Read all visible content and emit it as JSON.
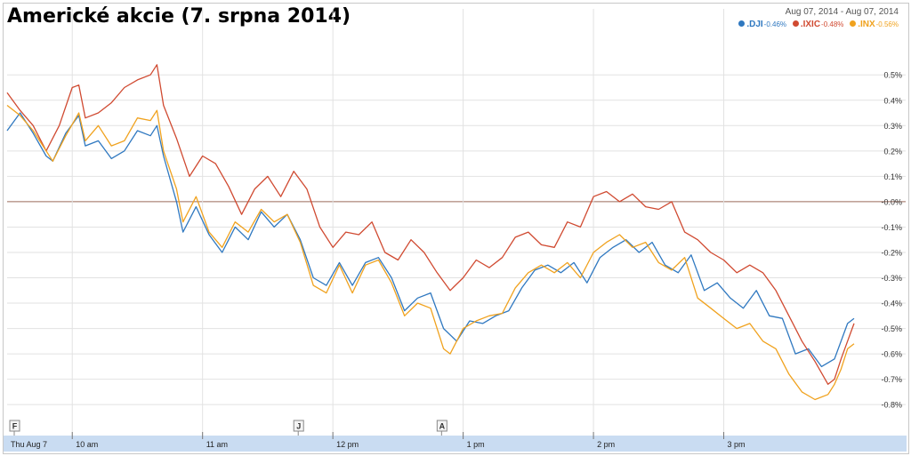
{
  "title": "Americké akcie (7. srpna 2014)",
  "date_range": "Aug 07, 2014  -  Aug 07, 2014",
  "colors": {
    "dji": "#2f78c0",
    "ixic": "#d04a31",
    "inx": "#f0a21e",
    "grid": "#e2e2e2",
    "zero": "#9a6a5a",
    "axis_band": "#c9dcf2"
  },
  "legend": [
    {
      "symbol": ".DJI",
      "change": "-0.46%",
      "color": "#2f78c0"
    },
    {
      "symbol": ".IXIC",
      "change": "-0.48%",
      "color": "#d04a31"
    },
    {
      "symbol": ".INX",
      "change": "-0.56%",
      "color": "#f0a21e"
    }
  ],
  "flags": [
    "F",
    "J",
    "A"
  ],
  "chart_data": {
    "type": "line",
    "title": "Americké akcie (7. srpna 2014)",
    "xlabel": "",
    "ylabel": "",
    "x_unit": "hours since 9:30 am (market open)",
    "x_ticks": [
      {
        "x": 0,
        "label": "Thu Aug 7"
      },
      {
        "x": 0.5,
        "label": "10 am"
      },
      {
        "x": 1.5,
        "label": "11 am"
      },
      {
        "x": 2.5,
        "label": "12 pm"
      },
      {
        "x": 3.5,
        "label": "1 pm"
      },
      {
        "x": 4.5,
        "label": "2 pm"
      },
      {
        "x": 5.5,
        "label": "3 pm"
      }
    ],
    "y_ticks": [
      "0.5%",
      "0.4%",
      "0.3%",
      "0.2%",
      "0.1%",
      "-0.0%",
      "-0.1%",
      "-0.2%",
      "-0.3%",
      "-0.4%",
      "-0.5%",
      "-0.6%",
      "-0.7%",
      "-0.8%"
    ],
    "y_tick_values": [
      0.5,
      0.4,
      0.3,
      0.2,
      0.1,
      0.0,
      -0.1,
      -0.2,
      -0.3,
      -0.4,
      -0.5,
      -0.6,
      -0.7,
      -0.8
    ],
    "ylim": [
      -0.88,
      0.62
    ],
    "xlim": [
      0,
      6.5
    ],
    "grid": true,
    "legend_position": "top-right",
    "series": [
      {
        "name": ".DJI",
        "change": "-0.46%",
        "values": [
          [
            0,
            0.28
          ],
          [
            0.1,
            0.35
          ],
          [
            0.2,
            0.27
          ],
          [
            0.3,
            0.18
          ],
          [
            0.35,
            0.16
          ],
          [
            0.45,
            0.27
          ],
          [
            0.55,
            0.34
          ],
          [
            0.6,
            0.22
          ],
          [
            0.7,
            0.24
          ],
          [
            0.8,
            0.17
          ],
          [
            0.9,
            0.2
          ],
          [
            1.0,
            0.28
          ],
          [
            1.1,
            0.26
          ],
          [
            1.15,
            0.3
          ],
          [
            1.2,
            0.18
          ],
          [
            1.3,
            0.0
          ],
          [
            1.35,
            -0.12
          ],
          [
            1.45,
            -0.02
          ],
          [
            1.55,
            -0.13
          ],
          [
            1.65,
            -0.2
          ],
          [
            1.75,
            -0.1
          ],
          [
            1.85,
            -0.15
          ],
          [
            1.95,
            -0.04
          ],
          [
            2.05,
            -0.1
          ],
          [
            2.15,
            -0.05
          ],
          [
            2.25,
            -0.15
          ],
          [
            2.35,
            -0.3
          ],
          [
            2.45,
            -0.33
          ],
          [
            2.55,
            -0.24
          ],
          [
            2.65,
            -0.33
          ],
          [
            2.75,
            -0.24
          ],
          [
            2.85,
            -0.22
          ],
          [
            2.95,
            -0.3
          ],
          [
            3.05,
            -0.43
          ],
          [
            3.15,
            -0.38
          ],
          [
            3.25,
            -0.36
          ],
          [
            3.35,
            -0.5
          ],
          [
            3.45,
            -0.55
          ],
          [
            3.55,
            -0.47
          ],
          [
            3.65,
            -0.48
          ],
          [
            3.75,
            -0.45
          ],
          [
            3.85,
            -0.43
          ],
          [
            3.95,
            -0.34
          ],
          [
            4.05,
            -0.27
          ],
          [
            4.15,
            -0.25
          ],
          [
            4.25,
            -0.28
          ],
          [
            4.35,
            -0.24
          ],
          [
            4.45,
            -0.32
          ],
          [
            4.55,
            -0.22
          ],
          [
            4.65,
            -0.18
          ],
          [
            4.75,
            -0.15
          ],
          [
            4.85,
            -0.2
          ],
          [
            4.95,
            -0.16
          ],
          [
            5.05,
            -0.25
          ],
          [
            5.15,
            -0.28
          ],
          [
            5.25,
            -0.21
          ],
          [
            5.35,
            -0.35
          ],
          [
            5.45,
            -0.32
          ],
          [
            5.55,
            -0.38
          ],
          [
            5.65,
            -0.42
          ],
          [
            5.75,
            -0.35
          ],
          [
            5.85,
            -0.45
          ],
          [
            5.95,
            -0.46
          ],
          [
            6.05,
            -0.6
          ],
          [
            6.15,
            -0.58
          ],
          [
            6.25,
            -0.65
          ],
          [
            6.35,
            -0.62
          ],
          [
            6.45,
            -0.48
          ],
          [
            6.5,
            -0.46
          ]
        ]
      },
      {
        "name": ".IXIC",
        "change": "-0.48%",
        "values": [
          [
            0,
            0.43
          ],
          [
            0.1,
            0.36
          ],
          [
            0.2,
            0.3
          ],
          [
            0.3,
            0.2
          ],
          [
            0.4,
            0.3
          ],
          [
            0.5,
            0.45
          ],
          [
            0.55,
            0.46
          ],
          [
            0.6,
            0.33
          ],
          [
            0.7,
            0.35
          ],
          [
            0.8,
            0.39
          ],
          [
            0.9,
            0.45
          ],
          [
            1.0,
            0.48
          ],
          [
            1.1,
            0.5
          ],
          [
            1.15,
            0.54
          ],
          [
            1.2,
            0.38
          ],
          [
            1.3,
            0.25
          ],
          [
            1.4,
            0.1
          ],
          [
            1.5,
            0.18
          ],
          [
            1.6,
            0.15
          ],
          [
            1.7,
            0.06
          ],
          [
            1.8,
            -0.05
          ],
          [
            1.9,
            0.05
          ],
          [
            2.0,
            0.1
          ],
          [
            2.1,
            0.02
          ],
          [
            2.2,
            0.12
          ],
          [
            2.3,
            0.05
          ],
          [
            2.4,
            -0.1
          ],
          [
            2.5,
            -0.18
          ],
          [
            2.6,
            -0.12
          ],
          [
            2.7,
            -0.13
          ],
          [
            2.8,
            -0.08
          ],
          [
            2.9,
            -0.2
          ],
          [
            3.0,
            -0.23
          ],
          [
            3.1,
            -0.15
          ],
          [
            3.2,
            -0.2
          ],
          [
            3.3,
            -0.28
          ],
          [
            3.4,
            -0.35
          ],
          [
            3.5,
            -0.3
          ],
          [
            3.6,
            -0.23
          ],
          [
            3.7,
            -0.26
          ],
          [
            3.8,
            -0.22
          ],
          [
            3.9,
            -0.14
          ],
          [
            4.0,
            -0.12
          ],
          [
            4.1,
            -0.17
          ],
          [
            4.2,
            -0.18
          ],
          [
            4.3,
            -0.08
          ],
          [
            4.4,
            -0.1
          ],
          [
            4.5,
            0.02
          ],
          [
            4.6,
            0.04
          ],
          [
            4.7,
            0.0
          ],
          [
            4.8,
            0.03
          ],
          [
            4.9,
            -0.02
          ],
          [
            5.0,
            -0.03
          ],
          [
            5.1,
            0.0
          ],
          [
            5.2,
            -0.12
          ],
          [
            5.3,
            -0.15
          ],
          [
            5.4,
            -0.2
          ],
          [
            5.5,
            -0.23
          ],
          [
            5.6,
            -0.28
          ],
          [
            5.7,
            -0.25
          ],
          [
            5.8,
            -0.28
          ],
          [
            5.9,
            -0.35
          ],
          [
            6.0,
            -0.45
          ],
          [
            6.1,
            -0.55
          ],
          [
            6.2,
            -0.63
          ],
          [
            6.3,
            -0.72
          ],
          [
            6.35,
            -0.7
          ],
          [
            6.4,
            -0.62
          ],
          [
            6.45,
            -0.55
          ],
          [
            6.5,
            -0.48
          ]
        ]
      },
      {
        "name": ".INX",
        "change": "-0.56%",
        "values": [
          [
            0,
            0.38
          ],
          [
            0.1,
            0.34
          ],
          [
            0.2,
            0.28
          ],
          [
            0.3,
            0.2
          ],
          [
            0.35,
            0.16
          ],
          [
            0.45,
            0.26
          ],
          [
            0.55,
            0.35
          ],
          [
            0.6,
            0.24
          ],
          [
            0.7,
            0.3
          ],
          [
            0.8,
            0.22
          ],
          [
            0.9,
            0.24
          ],
          [
            1.0,
            0.33
          ],
          [
            1.1,
            0.32
          ],
          [
            1.15,
            0.36
          ],
          [
            1.2,
            0.2
          ],
          [
            1.3,
            0.05
          ],
          [
            1.35,
            -0.08
          ],
          [
            1.45,
            0.02
          ],
          [
            1.55,
            -0.12
          ],
          [
            1.65,
            -0.18
          ],
          [
            1.75,
            -0.08
          ],
          [
            1.85,
            -0.12
          ],
          [
            1.95,
            -0.03
          ],
          [
            2.05,
            -0.08
          ],
          [
            2.15,
            -0.05
          ],
          [
            2.25,
            -0.16
          ],
          [
            2.35,
            -0.33
          ],
          [
            2.45,
            -0.36
          ],
          [
            2.55,
            -0.25
          ],
          [
            2.65,
            -0.36
          ],
          [
            2.75,
            -0.25
          ],
          [
            2.85,
            -0.23
          ],
          [
            2.95,
            -0.32
          ],
          [
            3.05,
            -0.45
          ],
          [
            3.15,
            -0.4
          ],
          [
            3.25,
            -0.42
          ],
          [
            3.35,
            -0.58
          ],
          [
            3.4,
            -0.6
          ],
          [
            3.5,
            -0.5
          ],
          [
            3.6,
            -0.47
          ],
          [
            3.7,
            -0.45
          ],
          [
            3.8,
            -0.44
          ],
          [
            3.9,
            -0.34
          ],
          [
            4.0,
            -0.28
          ],
          [
            4.1,
            -0.25
          ],
          [
            4.2,
            -0.28
          ],
          [
            4.3,
            -0.24
          ],
          [
            4.4,
            -0.3
          ],
          [
            4.5,
            -0.2
          ],
          [
            4.6,
            -0.16
          ],
          [
            4.7,
            -0.13
          ],
          [
            4.8,
            -0.18
          ],
          [
            4.9,
            -0.16
          ],
          [
            5.0,
            -0.24
          ],
          [
            5.1,
            -0.27
          ],
          [
            5.2,
            -0.22
          ],
          [
            5.3,
            -0.38
          ],
          [
            5.4,
            -0.42
          ],
          [
            5.5,
            -0.46
          ],
          [
            5.6,
            -0.5
          ],
          [
            5.7,
            -0.48
          ],
          [
            5.8,
            -0.55
          ],
          [
            5.9,
            -0.58
          ],
          [
            6.0,
            -0.68
          ],
          [
            6.1,
            -0.75
          ],
          [
            6.2,
            -0.78
          ],
          [
            6.3,
            -0.76
          ],
          [
            6.35,
            -0.72
          ],
          [
            6.4,
            -0.66
          ],
          [
            6.45,
            -0.58
          ],
          [
            6.5,
            -0.56
          ]
        ]
      }
    ]
  }
}
